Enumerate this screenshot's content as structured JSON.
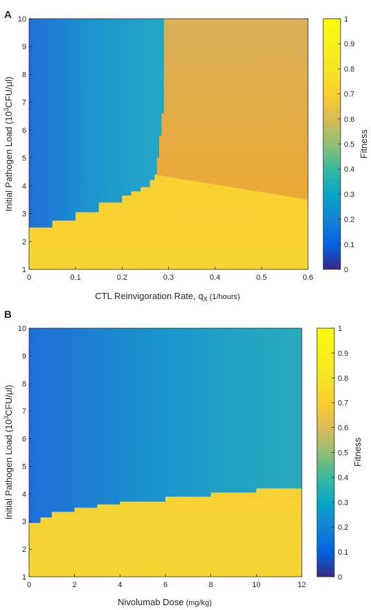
{
  "chart_data": [
    {
      "type": "heatmap",
      "panel_label": "A",
      "xlabel_main": "CTL Reinvigoration Rate, q",
      "xlabel_sub": "X",
      "xlabel_unit": " (1/hours)",
      "ylabel_main": "Initial Pathogen Load (10",
      "ylabel_sup": "3",
      "ylabel_unit": "CFU/μl)",
      "x_ticks": [
        "0",
        "0.1",
        "0.2",
        "0.3",
        "0.4",
        "0.5",
        "0.6"
      ],
      "y_ticks": [
        "1",
        "2",
        "3",
        "4",
        "5",
        "6",
        "7",
        "8",
        "9",
        "10"
      ],
      "xlim": [
        0,
        0.6
      ],
      "ylim": [
        1,
        10
      ],
      "colorbar_label": "Fitness",
      "colorbar_ticks": [
        "0",
        "0.1",
        "0.2",
        "0.3",
        "0.4",
        "0.5",
        "0.6",
        "0.7",
        "0.8",
        "0.9",
        "1"
      ],
      "colorbar_range": [
        0,
        1
      ],
      "regions": {
        "low_fitness": "high pathogen load, low reinvigoration rate (fitness ~0.2-0.45)",
        "intermediate_fitness": "high pathogen load, reinvigoration rate above ~0.29 (fitness ~0.75-0.85)",
        "high_fitness": "low pathogen load (fitness ~0.9-0.95)"
      },
      "boundary_low_high": {
        "x": [
          0,
          0.05,
          0.1,
          0.15,
          0.2,
          0.22,
          0.24,
          0.26,
          0.27
        ],
        "y": [
          2.5,
          2.75,
          3.05,
          3.4,
          3.65,
          3.8,
          3.95,
          4.2,
          4.4
        ]
      },
      "boundary_low_intermediate": {
        "x": [
          0.27,
          0.275,
          0.28,
          0.285,
          0.29,
          0.29
        ],
        "y": [
          4.4,
          5.0,
          5.8,
          6.6,
          7.2,
          10
        ]
      }
    },
    {
      "type": "heatmap",
      "panel_label": "B",
      "xlabel_main": "Nivolumab Dose",
      "xlabel_unit": " (mg/kg)",
      "ylabel_main": "Initial Pathogen Load (10",
      "ylabel_sup": "3",
      "ylabel_unit": "CFU/μl)",
      "x_ticks": [
        "0",
        "2",
        "4",
        "6",
        "8",
        "10",
        "12"
      ],
      "y_ticks": [
        "1",
        "2",
        "3",
        "4",
        "5",
        "6",
        "7",
        "8",
        "9",
        "10"
      ],
      "xlim": [
        0,
        12
      ],
      "ylim": [
        1,
        10
      ],
      "colorbar_label": "Fitness",
      "colorbar_ticks": [
        "0",
        "0.1",
        "0.2",
        "0.3",
        "0.4",
        "0.5",
        "0.6",
        "0.7",
        "0.8",
        "0.9",
        "1"
      ],
      "colorbar_range": [
        0,
        1
      ],
      "regions": {
        "low_fitness": "high pathogen load (fitness ~0.25-0.45)",
        "high_fitness": "low pathogen load (fitness ~0.9-0.95)"
      },
      "boundary_low_high": {
        "x": [
          0,
          0.5,
          1,
          2,
          3,
          4,
          6,
          8,
          10,
          12
        ],
        "y": [
          2.95,
          3.15,
          3.35,
          3.5,
          3.62,
          3.72,
          3.9,
          4.05,
          4.2,
          4.4
        ]
      }
    }
  ]
}
